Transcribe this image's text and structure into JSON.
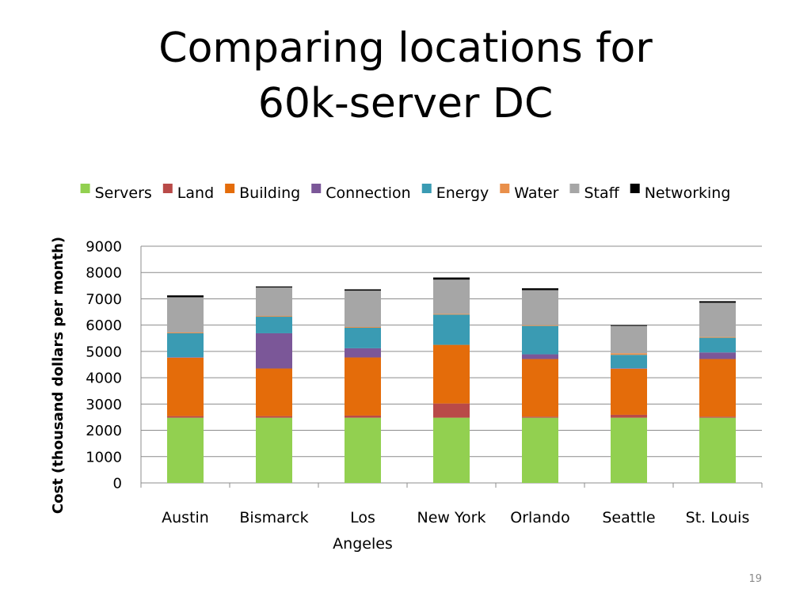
{
  "slide": {
    "title_line1": "Comparing locations for",
    "title_line2": "60k-server DC",
    "page_number": "19"
  },
  "chart_data": {
    "type": "bar",
    "stacked": true,
    "categories": [
      "Austin",
      "Bismarck",
      "Los Angeles",
      "New York",
      "Orlando",
      "Seattle",
      "St. Louis"
    ],
    "category_label_lines": [
      [
        "Austin"
      ],
      [
        "Bismarck"
      ],
      [
        "Los",
        "Angeles"
      ],
      [
        "New York"
      ],
      [
        "Orlando"
      ],
      [
        "Seattle"
      ],
      [
        "St. Louis"
      ]
    ],
    "series": [
      {
        "name": "Servers",
        "color": "#92d050",
        "values": [
          2480,
          2480,
          2480,
          2480,
          2480,
          2480,
          2480
        ]
      },
      {
        "name": "Land",
        "color": "#b94a48",
        "values": [
          60,
          60,
          80,
          540,
          40,
          110,
          40
        ]
      },
      {
        "name": "Building",
        "color": "#e46c0a",
        "values": [
          2220,
          1810,
          2210,
          2230,
          2190,
          1750,
          2190
        ]
      },
      {
        "name": "Connection",
        "color": "#7b5798",
        "values": [
          20,
          1340,
          350,
          0,
          180,
          20,
          250
        ]
      },
      {
        "name": "Energy",
        "color": "#3a9bb3",
        "values": [
          910,
          630,
          780,
          1150,
          1080,
          510,
          560
        ]
      },
      {
        "name": "Water",
        "color": "#e98f4a",
        "values": [
          30,
          30,
          30,
          30,
          30,
          60,
          30
        ]
      },
      {
        "name": "Staff",
        "color": "#a6a6a6",
        "values": [
          1340,
          1080,
          1380,
          1300,
          1330,
          1040,
          1300
        ]
      },
      {
        "name": "Networking",
        "color": "#000000",
        "values": [
          70,
          40,
          50,
          80,
          70,
          30,
          60
        ]
      }
    ],
    "title": "",
    "xlabel": "",
    "ylabel": "Cost (thousand dollars per month)",
    "ylim": [
      0,
      9000
    ],
    "yticks": [
      0,
      1000,
      2000,
      3000,
      4000,
      5000,
      6000,
      7000,
      8000,
      9000
    ],
    "grid": true,
    "legend_position": "top"
  }
}
